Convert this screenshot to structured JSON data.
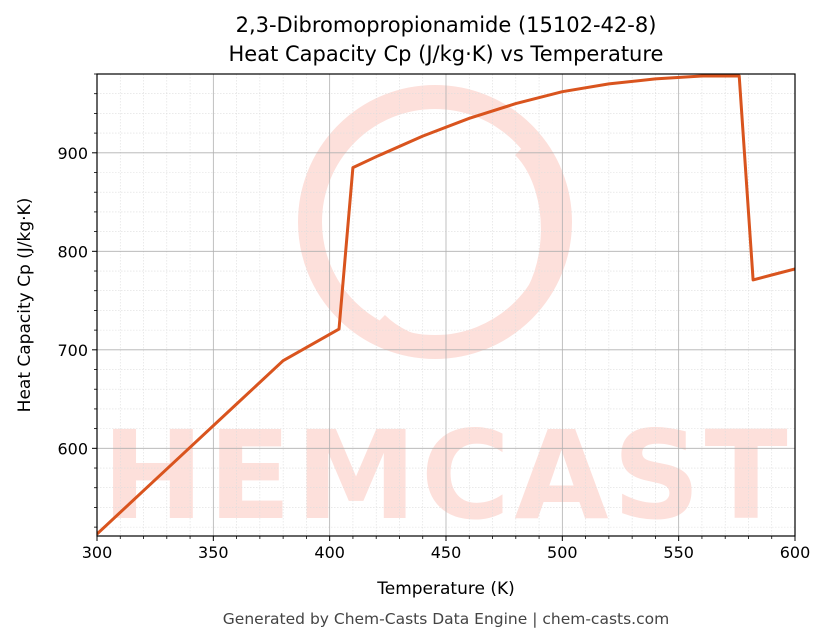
{
  "title_line1": "2,3-Dibromopropionamide (15102-42-8)",
  "title_line2": "Heat Capacity Cp (J/kg·K) vs Temperature",
  "footer": "Generated by Chem-Casts Data Engine | chem-casts.com",
  "watermark": "CHEMCASTS",
  "colors": {
    "line": "#d9541e",
    "watermark": "#fde0db",
    "grid_major": "#b0b0b0",
    "grid_minor": "#dddddd"
  },
  "chart_data": {
    "type": "line",
    "title": "2,3-Dibromopropionamide (15102-42-8)\nHeat Capacity Cp (J/kg·K) vs Temperature",
    "xlabel": "Temperature (K)",
    "ylabel": "Heat Capacity Cp (J/kg·K)",
    "xlim": [
      300,
      600
    ],
    "ylim": [
      511,
      980
    ],
    "xticks": [
      300,
      350,
      400,
      450,
      500,
      550,
      600
    ],
    "yticks": [
      600,
      700,
      800,
      900
    ],
    "grid": true,
    "series": [
      {
        "x": [
          300,
          320,
          340,
          360,
          380,
          404,
          410,
          420,
          440,
          460,
          480,
          500,
          520,
          540,
          560,
          576,
          582,
          590,
          600
        ],
        "y": [
          513,
          557,
          601,
          645,
          689,
          721,
          885,
          896,
          917,
          935,
          950,
          962,
          970,
          975,
          978,
          978,
          771,
          776,
          782
        ]
      }
    ]
  }
}
